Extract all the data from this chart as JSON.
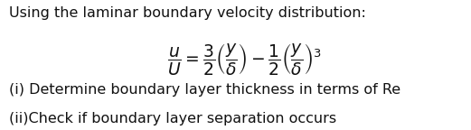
{
  "title_line": "Using the laminar boundary velocity distribution:",
  "formula": "$\\dfrac{u}{U} = \\dfrac{3}{2}\\left(\\dfrac{y}{\\delta}\\right) - \\dfrac{1}{2}\\left(\\dfrac{y}{\\delta}\\right)^{3}$",
  "line1": "(i) Determine boundary layer thickness in terms of Re",
  "line2": "(ii)Check if boundary layer separation occurs",
  "bg_color": "#ffffff",
  "text_color": "#111111",
  "title_fontsize": 11.5,
  "body_fontsize": 11.5,
  "formula_fontsize": 13.5,
  "fig_width": 5.21,
  "fig_height": 1.44,
  "dpi": 100
}
